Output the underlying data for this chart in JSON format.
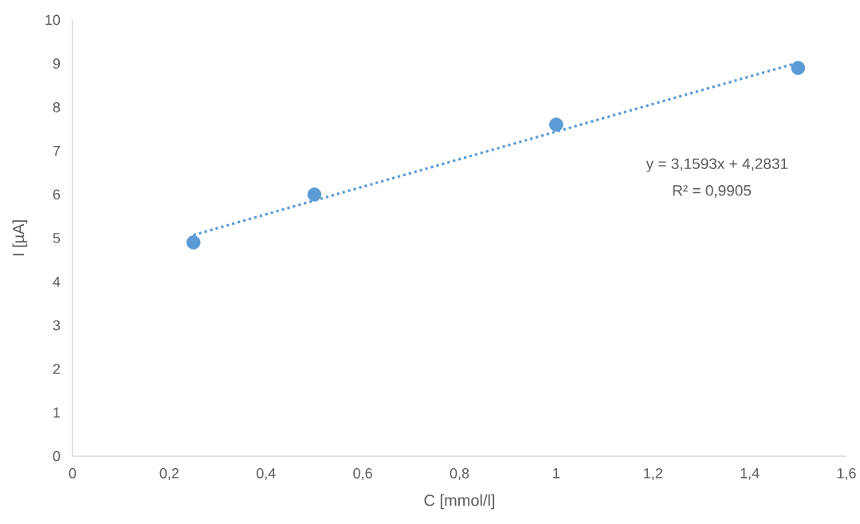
{
  "chart_data": {
    "type": "scatter",
    "xlabel": "C [mmol/l]",
    "ylabel": "I [µA]",
    "xlim": [
      0,
      1.6
    ],
    "xticks": [
      0,
      {
        "value": 0.2,
        "label": "0,2"
      },
      {
        "value": 0.4,
        "label": "0,4"
      },
      {
        "value": 0.6,
        "label": "0,6"
      },
      {
        "value": 0.8,
        "label": "0,8"
      },
      1,
      {
        "value": 1.2,
        "label": "1,2"
      },
      {
        "value": 1.4,
        "label": "1,4"
      },
      {
        "value": 1.6,
        "label": "1,6"
      }
    ],
    "ylim": [
      0,
      10
    ],
    "yticks": [
      0,
      1,
      2,
      3,
      4,
      5,
      6,
      7,
      8,
      9,
      10
    ],
    "series": [
      {
        "marker": "circle",
        "color": "#5b9bd5",
        "x": [
          0.25,
          0.5,
          1,
          1.5
        ],
        "values": [
          4.9,
          6.0,
          7.6,
          8.9
        ]
      },
      {
        "type": "line",
        "marker": "none",
        "line_style": "dotted",
        "color": "#5b9bd5",
        "x": [
          0.25,
          1.5
        ],
        "values": [
          5.07,
          9.02
        ]
      }
    ],
    "annotations": [
      "y = 3,1593x + 4,2831",
      "R² = 0,9905"
    ]
  }
}
